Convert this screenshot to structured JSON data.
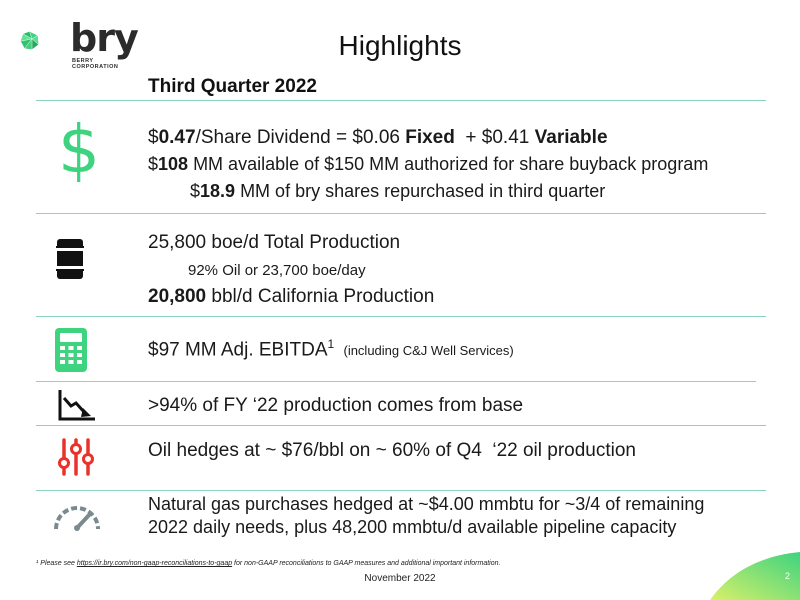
{
  "logo": {
    "word": "bry",
    "sub_line1": "BERRY",
    "sub_line2": "CORPORATION",
    "icon": "gem-icon"
  },
  "title": "Highlights",
  "subtitle": "Third Quarter 2022",
  "colors": {
    "accent_green": "#3ed37f",
    "rule": "#8ad3c0",
    "hedge_red": "#e8332a",
    "gauge_gray": "#7a8a8f"
  },
  "sections": {
    "dividend": {
      "icon": "dollar-icon",
      "line1": {
        "pre": "$",
        "b1": "0.47",
        "mid": "/Share Dividend = $0.06 ",
        "b2": "Fixed",
        "mid2": "  + $0.41 ",
        "b3": "Variable"
      },
      "line2": {
        "pre": "$",
        "b1": "108",
        "rest": " MM available of $150 MM authorized for share buyback program"
      },
      "line3": {
        "pre": "$",
        "b1": "18.9",
        "rest": " MM of bry shares repurchased in third quarter"
      }
    },
    "production": {
      "icon": "oil-barrel-icon",
      "line1": "25,800 boe/d Total Production",
      "line2": "92% Oil or 23,700 boe/day",
      "line3": {
        "b1": "20,800",
        "rest": " bbl/d California Production"
      }
    },
    "ebitda": {
      "icon": "calculator-icon",
      "main": "$97 MM Adj. EBITDA",
      "sup": "1",
      "note": "(including C&J Well Services)"
    },
    "base": {
      "icon": "declining-chart-icon",
      "text": ">94% of FY ‘22 production comes from base"
    },
    "hedges": {
      "icon": "sliders-icon",
      "text": "Oil hedges at ~ $76/bbl on ~ 60% of Q4  ‘22 oil production"
    },
    "gas": {
      "icon": "gauge-icon",
      "line1": "Natural gas purchases hedged at ~$4.00 mmbtu for ~3/4 of remaining",
      "line2": "2022 daily needs, plus 48,200 mmbtu/d available pipeline capacity"
    }
  },
  "footnote": {
    "pre": "¹ Please see ",
    "link": "https://ir.bry.com/non-gaap-reconciliations-to-gaap",
    "post": " for non-GAAP reconciliations to GAAP measures and additional important information."
  },
  "date": "November 2022",
  "page_number": "2"
}
